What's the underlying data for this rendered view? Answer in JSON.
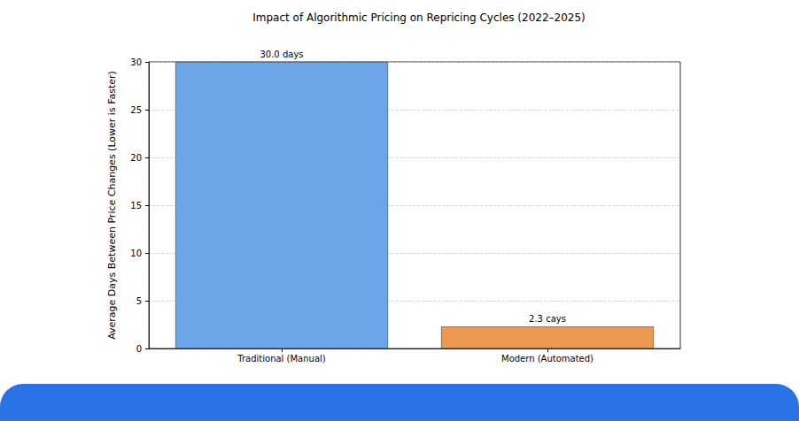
{
  "chart_data": {
    "type": "bar",
    "title": "Impact of Algorithmic Pricing on Repricing Cycles (2022–2025)",
    "y_label": "Average Days Between Price Changes (Lower is Faster)",
    "categories": [
      "Traditional (Manual)",
      "Modern (Automated)"
    ],
    "values": [
      30.0,
      2.3
    ],
    "value_labels": [
      "30.0 days",
      "2.3 cays"
    ],
    "colors": [
      "#6ca6e8",
      "#eb9850"
    ],
    "ylim": [
      0,
      30
    ],
    "yticks": [
      0,
      5,
      10,
      15,
      20,
      25,
      30
    ],
    "grid": true,
    "data_labels": true
  }
}
